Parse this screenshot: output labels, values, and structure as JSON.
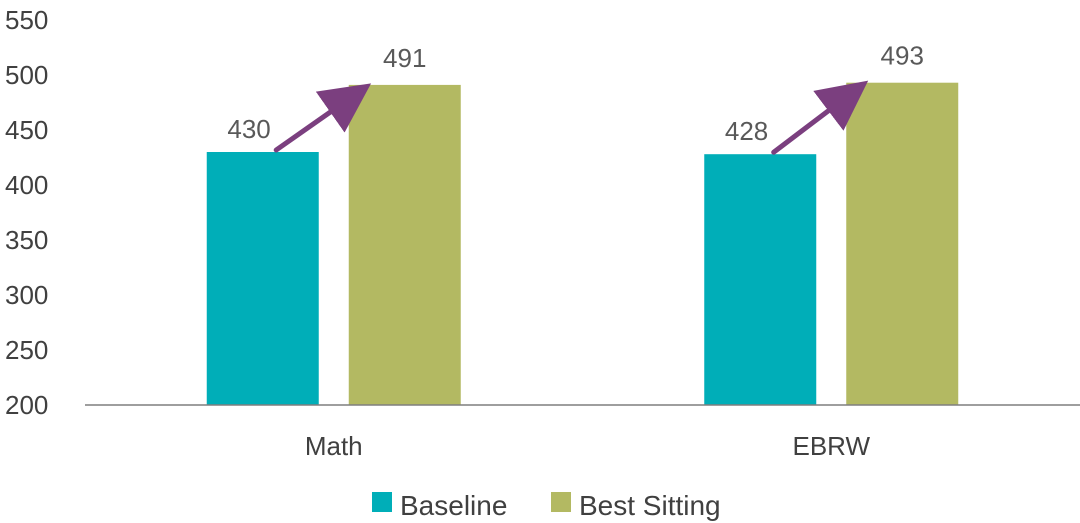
{
  "chart_data": {
    "type": "bar",
    "categories": [
      "Math",
      "EBRW"
    ],
    "series": [
      {
        "name": "Baseline",
        "values": [
          430,
          428
        ],
        "color": "#00AEB8"
      },
      {
        "name": "Best Sitting",
        "values": [
          491,
          493
        ],
        "color": "#B3B962"
      }
    ],
    "y_ticks": [
      "200",
      "250",
      "300",
      "350",
      "400",
      "450",
      "500",
      "550"
    ],
    "ylim": [
      200,
      550
    ],
    "grid": false,
    "legend_position": "bottom",
    "annotations": [
      {
        "type": "arrow",
        "category": "Math",
        "from_series": "Baseline",
        "to_series": "Best Sitting",
        "color": "#7B3F7F"
      },
      {
        "type": "arrow",
        "category": "EBRW",
        "from_series": "Baseline",
        "to_series": "Best Sitting",
        "color": "#7B3F7F"
      }
    ]
  }
}
